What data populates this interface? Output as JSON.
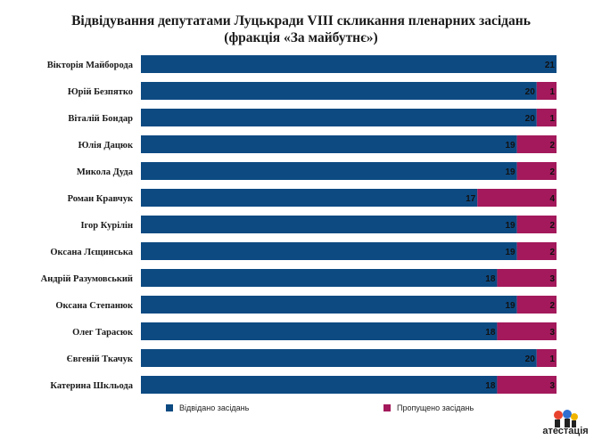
{
  "chart_data": {
    "type": "bar",
    "orientation": "horizontal",
    "stacked": true,
    "title": "Відвідування депутатами Луцькради VIII скликання пленарних засідань",
    "subtitle": "(фракція «За майбутнє»)",
    "categories": [
      "Вікторія Майборода",
      "Юрій Безпятко",
      "Віталій Бондар",
      "Юлія Дацюк",
      "Микола Дуда",
      "Роман Кравчук",
      "Ігор Курілін",
      "Оксана Лєщинська",
      "Андрій Разумовський",
      "Оксана Степанюк",
      "Олег Тарасюк",
      "Євгеній Ткачук",
      "Катерина Шкльода"
    ],
    "series": [
      {
        "name": "Відвідано засідань",
        "color": "#0d4a82",
        "values": [
          21,
          20,
          20,
          19,
          19,
          17,
          19,
          19,
          18,
          19,
          18,
          20,
          18
        ]
      },
      {
        "name": "Пропущено засідань",
        "color": "#a3195b",
        "values": [
          0,
          1,
          1,
          2,
          2,
          4,
          2,
          2,
          3,
          2,
          3,
          1,
          3
        ]
      }
    ],
    "xlim": [
      0,
      21
    ],
    "grid": false,
    "legend_position": "bottom"
  },
  "legend": {
    "attended": "Відвідано засідань",
    "missed": "Пропущено засідань"
  },
  "logo": {
    "text": "атестація"
  }
}
